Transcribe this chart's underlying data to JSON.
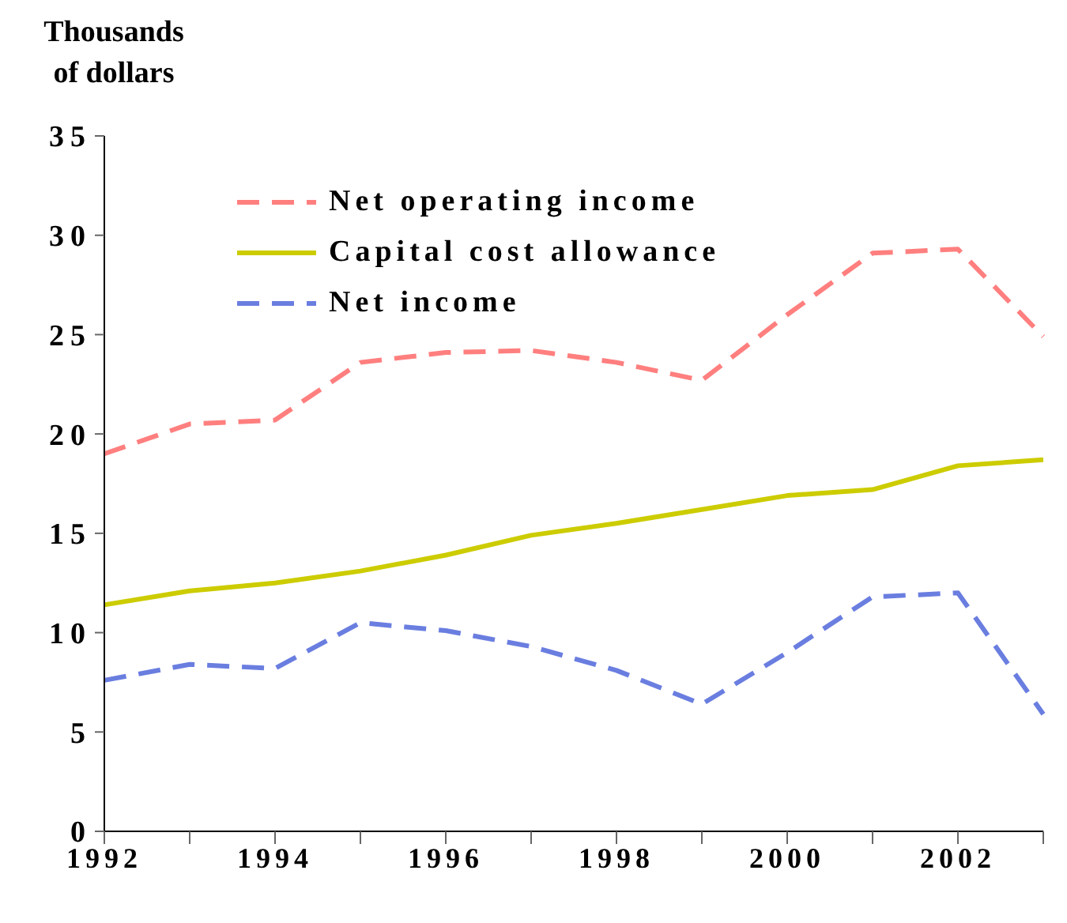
{
  "chart_data": {
    "type": "line",
    "ylabel": "Thousands of dollars",
    "categories": [
      "1992",
      null,
      "1994",
      null,
      "1996",
      null,
      "1998",
      null,
      "2000",
      null,
      "2002",
      null
    ],
    "series": [
      {
        "name": "Net operating income",
        "color": "#ff7f7f",
        "line_style": "dashed",
        "values": [
          19.0,
          20.5,
          20.7,
          23.6,
          24.1,
          24.2,
          23.6,
          22.7,
          26.0,
          29.1,
          29.3,
          24.9
        ]
      },
      {
        "name": "Capital cost allowance",
        "color": "#cccc00",
        "line_style": "solid",
        "values": [
          11.4,
          12.1,
          12.5,
          13.1,
          13.9,
          14.9,
          15.5,
          16.2,
          16.9,
          17.2,
          18.4,
          18.7
        ]
      },
      {
        "name": "Net income",
        "color": "#6a7ee0",
        "line_style": "dashed",
        "values": [
          7.6,
          8.4,
          8.2,
          10.5,
          10.1,
          9.3,
          8.1,
          6.4,
          9.0,
          11.8,
          12.0,
          5.9
        ]
      }
    ],
    "ylim": [
      0,
      35
    ],
    "yticks": [
      0,
      5,
      10,
      15,
      20,
      25,
      30,
      35
    ],
    "grid": false,
    "legend": "top left",
    "marker": "none"
  }
}
